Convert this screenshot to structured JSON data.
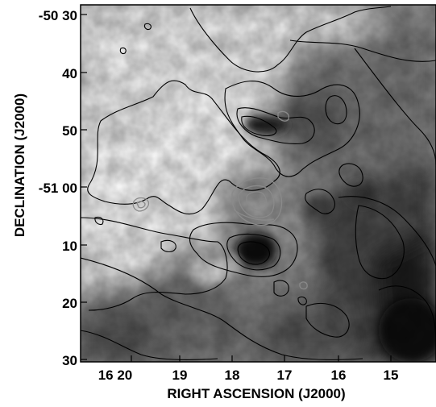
{
  "figure": {
    "x_axis_label": "RIGHT ASCENSION (J2000)",
    "y_axis_label": "DECLINATION (J2000)",
    "x_ticks": [
      "16 20",
      "19",
      "18",
      "17",
      "16",
      "15"
    ],
    "y_ticks": [
      "-50 30",
      "40",
      "50",
      "-51 00",
      "10",
      "20",
      "30"
    ],
    "colors": {
      "background": "#ffffff",
      "contour_black": "#000000",
      "contour_gray": "#8a8a8a"
    }
  }
}
